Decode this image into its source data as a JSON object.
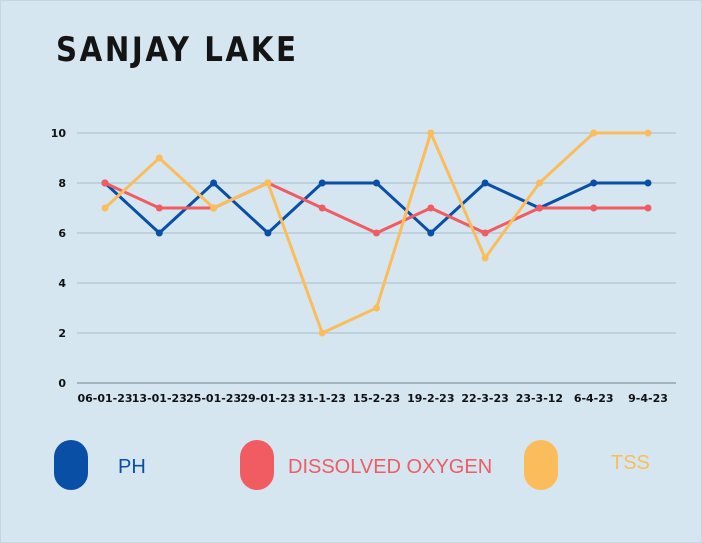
{
  "chart_data": {
    "type": "line",
    "title": "SANJAY LAKE",
    "categories": [
      "06-01-23",
      "13-01-23",
      "25-01-23",
      "29-01-23",
      "31-1-23",
      "15-2-23",
      "19-2-23",
      "22-3-23",
      "23-3-12",
      "6-4-23",
      "9-4-23"
    ],
    "ylim": [
      0,
      10
    ],
    "yticks": [
      0,
      2,
      4,
      6,
      8,
      10
    ],
    "grid": true,
    "legend_position": "bottom",
    "series": [
      {
        "name": "PH",
        "color": "#0a4fa6",
        "values": [
          8,
          6,
          8,
          6,
          8,
          8,
          6,
          8,
          7,
          8,
          8
        ]
      },
      {
        "name": "DISSOLVED OXYGEN",
        "color": "#f05c62",
        "values": [
          8,
          7,
          7,
          8,
          7,
          6,
          7,
          6,
          7,
          7,
          7
        ]
      },
      {
        "name": "TSS",
        "color": "#fbbd5b",
        "values": [
          7,
          9,
          7,
          8,
          2,
          3,
          10,
          5,
          8,
          10,
          10
        ]
      }
    ]
  }
}
